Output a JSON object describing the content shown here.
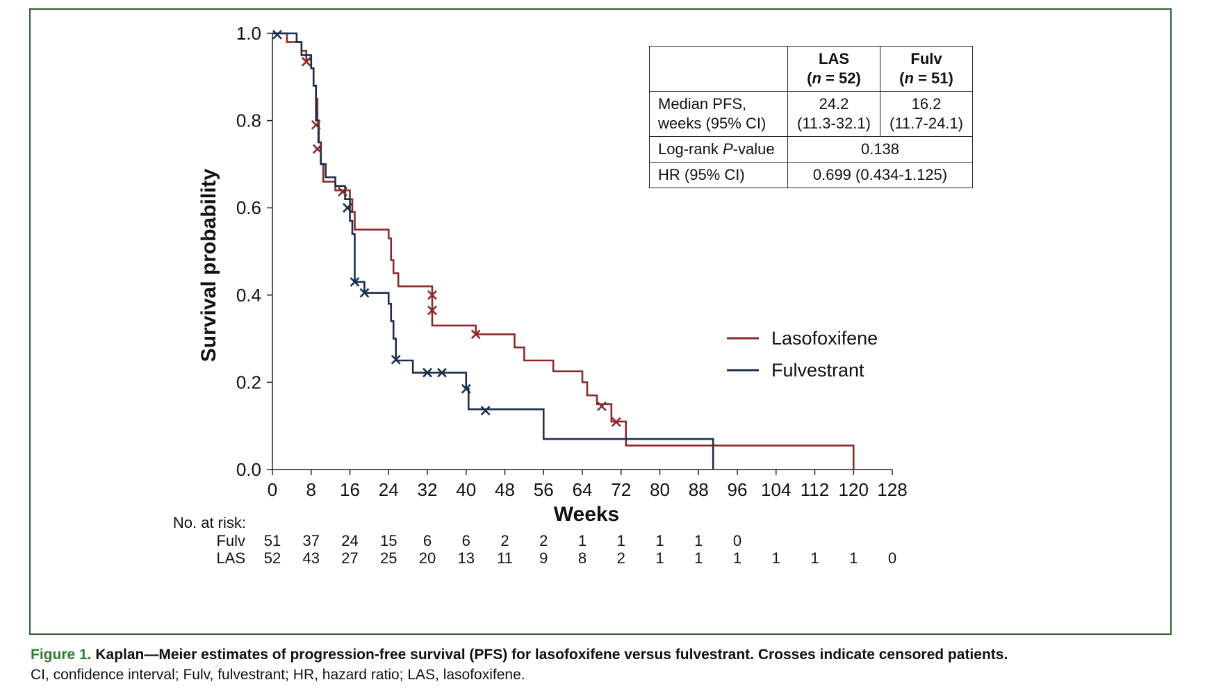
{
  "chart_data": {
    "type": "line",
    "subtype": "kaplan-meier step",
    "xlabel": "Weeks",
    "ylabel": "Survival probability",
    "xlim": [
      0,
      128
    ],
    "ylim": [
      0,
      1.0
    ],
    "x_ticks": [
      0,
      8,
      16,
      24,
      32,
      40,
      48,
      56,
      64,
      72,
      80,
      88,
      96,
      104,
      112,
      120,
      128
    ],
    "y_ticks": [
      "0.0",
      "0.2",
      "0.4",
      "0.6",
      "0.8",
      "1.0"
    ],
    "legend": {
      "position": "right",
      "entries": [
        "Lasofoxifene",
        "Fulvestrant"
      ]
    },
    "series": [
      {
        "name": "Lasofoxifene",
        "color": "#8b2a2a",
        "steps": [
          [
            0,
            1.0
          ],
          [
            3,
            0.98
          ],
          [
            6,
            0.96
          ],
          [
            7,
            0.94
          ],
          [
            8,
            0.92
          ],
          [
            8.5,
            0.88
          ],
          [
            9,
            0.85
          ],
          [
            9.3,
            0.8
          ],
          [
            9.6,
            0.75
          ],
          [
            10,
            0.7
          ],
          [
            10.5,
            0.66
          ],
          [
            13,
            0.64
          ],
          [
            16,
            0.62
          ],
          [
            16.5,
            0.59
          ],
          [
            17,
            0.55
          ],
          [
            24,
            0.53
          ],
          [
            24.5,
            0.48
          ],
          [
            25,
            0.45
          ],
          [
            26,
            0.42
          ],
          [
            33,
            0.33
          ],
          [
            42,
            0.31
          ],
          [
            50,
            0.28
          ],
          [
            52,
            0.25
          ],
          [
            58,
            0.225
          ],
          [
            64,
            0.2
          ],
          [
            65,
            0.17
          ],
          [
            67,
            0.15
          ],
          [
            70,
            0.11
          ],
          [
            73,
            0.055
          ],
          [
            120,
            0.055
          ],
          [
            120,
            0
          ]
        ],
        "censored": [
          [
            7,
            0.935
          ],
          [
            9,
            0.79
          ],
          [
            9.3,
            0.735
          ],
          [
            14.5,
            0.637
          ],
          [
            33,
            0.4
          ],
          [
            33,
            0.365
          ],
          [
            42,
            0.31
          ],
          [
            68,
            0.145
          ],
          [
            71,
            0.109
          ]
        ]
      },
      {
        "name": "Fulvestrant",
        "color": "#1a2f4f",
        "steps": [
          [
            0,
            1.0
          ],
          [
            5,
            0.98
          ],
          [
            6,
            0.95
          ],
          [
            8,
            0.92
          ],
          [
            8.5,
            0.88
          ],
          [
            9,
            0.8
          ],
          [
            9.5,
            0.75
          ],
          [
            10,
            0.7
          ],
          [
            11,
            0.67
          ],
          [
            13,
            0.65
          ],
          [
            15,
            0.62
          ],
          [
            16,
            0.57
          ],
          [
            16.5,
            0.54
          ],
          [
            17,
            0.43
          ],
          [
            19,
            0.405
          ],
          [
            24,
            0.38
          ],
          [
            24.5,
            0.34
          ],
          [
            25,
            0.3
          ],
          [
            25.5,
            0.25
          ],
          [
            29,
            0.222
          ],
          [
            40,
            0.185
          ],
          [
            40.5,
            0.138
          ],
          [
            56,
            0.07
          ],
          [
            91,
            0.07
          ],
          [
            91,
            0
          ]
        ],
        "censored": [
          [
            1,
            0.997
          ],
          [
            15.5,
            0.6
          ],
          [
            17,
            0.43
          ],
          [
            19,
            0.405
          ],
          [
            25.5,
            0.252
          ],
          [
            32,
            0.222
          ],
          [
            35,
            0.222
          ],
          [
            40,
            0.185
          ],
          [
            44,
            0.135
          ]
        ]
      }
    ],
    "risk_table": {
      "title": "No. at risk:",
      "rows": [
        {
          "label": "Fulv",
          "times": [
            0,
            8,
            16,
            24,
            32,
            40,
            48,
            56,
            64,
            72,
            80,
            88,
            96
          ],
          "values": [
            "51",
            "37",
            "24",
            "15",
            "6",
            "6",
            "2",
            "2",
            "1",
            "1",
            "1",
            "1",
            "0"
          ]
        },
        {
          "label": "LAS",
          "times": [
            0,
            8,
            16,
            24,
            32,
            40,
            48,
            56,
            64,
            72,
            80,
            88,
            96,
            104,
            112,
            120,
            128
          ],
          "values": [
            "52",
            "43",
            "27",
            "25",
            "20",
            "13",
            "11",
            "9",
            "8",
            "2",
            "1",
            "1",
            "1",
            "1",
            "1",
            "1",
            "0"
          ]
        }
      ]
    }
  },
  "stats_table": {
    "header": {
      "col1_name": "LAS",
      "col1_n_prefix": "(",
      "col1_n_italic": "n",
      "col1_n_suffix": " = 52)",
      "col2_name": "Fulv",
      "col2_n_prefix": "(",
      "col2_n_italic": "n",
      "col2_n_suffix": " = 51)"
    },
    "rows": {
      "median_label_line1": "Median PFS,",
      "median_label_line2": "weeks (95% CI)",
      "las_median": "24.2",
      "las_ci": "(11.3-32.1)",
      "fulv_median": "16.2",
      "fulv_ci": "(11.7-24.1)",
      "logrank_label_pre": "Log-rank ",
      "logrank_label_italic": "P",
      "logrank_label_post": "-value",
      "logrank_value": "0.138",
      "hr_label": "HR (95% CI)",
      "hr_value": "0.699 (0.434-1.125)"
    }
  },
  "caption": {
    "figure_label": "Figure 1.",
    "title": "Kaplan—Meier estimates of progression-free survival (PFS) for lasofoxifene versus fulvestrant. Crosses indicate censored patients.",
    "abbreviations": "CI, confidence interval; Fulv, fulvestrant; HR, hazard ratio; LAS, lasofoxifene."
  },
  "colors": {
    "frame": "#2e5e34",
    "caption_label": "#2e7d32"
  }
}
